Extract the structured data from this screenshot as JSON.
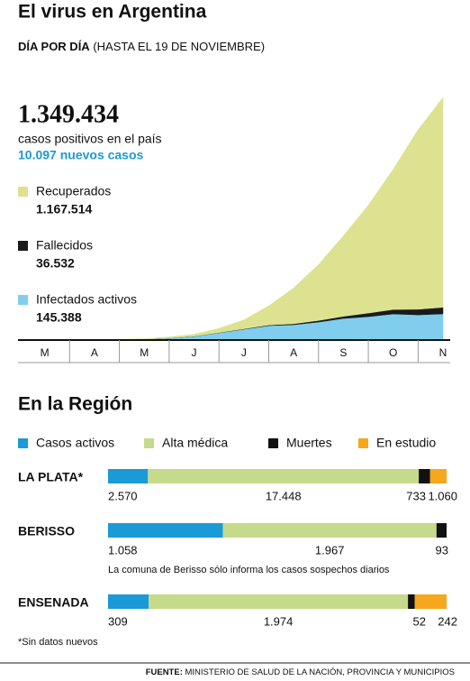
{
  "header": {
    "title": "El virus en Argentina",
    "subtitle_bold": "DÍA POR DÍA",
    "subtitle": "(HASTA EL 19 DE NOVIEMBRE)"
  },
  "chart_data": [
    {
      "type": "area",
      "stacked": true,
      "total": "1.349.434",
      "total_text": "casos positivos en el país",
      "new_cases": "10.097 nuevos casos",
      "categories": [
        null,
        "M",
        null,
        "A",
        null,
        "M",
        null,
        "J",
        null,
        "J",
        null,
        "A",
        null,
        "S",
        null,
        "O",
        null,
        "N"
      ],
      "series": [
        {
          "name": "Recuperados",
          "total": "1.167.514",
          "color": "#dde290",
          "values": [
            0,
            3,
            170,
            700,
            1300,
            2780,
            6470,
            11170,
            23700,
            49900,
            106400,
            199400,
            311300,
            448000,
            600000,
            780000,
            999000,
            1167514
          ]
        },
        {
          "name": "Fallecidos",
          "total": "36.532",
          "color": "#1a1a1a",
          "values": [
            0,
            2,
            30,
            100,
            200,
            320,
            530,
            830,
            1300,
            2100,
            3600,
            5600,
            8700,
            12000,
            20000,
            25000,
            31000,
            36532
          ]
        },
        {
          "name": "Infectados activos",
          "total": "145.388",
          "color": "#80cdee",
          "values": [
            0,
            45,
            800,
            1500,
            2800,
            4000,
            10000,
            20000,
            40000,
            60000,
            80000,
            85000,
            100000,
            120000,
            130000,
            145000,
            140000,
            145388
          ]
        }
      ],
      "ylim": [
        0,
        1400000
      ]
    },
    {
      "type": "bar",
      "orientation": "horizontal",
      "stacked": true,
      "normalized": true,
      "title": "En la Región",
      "categories": [
        "LA PLATA*",
        "BERISSO",
        "ENSENADA"
      ],
      "series": [
        {
          "name": "Casos activos",
          "color": "#1a9ad6",
          "values": [
            2570,
            1058,
            309
          ],
          "value_labels": [
            "2.570",
            "1.058",
            "309"
          ]
        },
        {
          "name": "Alta médica",
          "color": "#c6da8b",
          "values": [
            17448,
            1967,
            1974
          ],
          "value_labels": [
            "17.448",
            "1.967",
            "1.974"
          ]
        },
        {
          "name": "Muertes",
          "color": "#111111",
          "values": [
            733,
            93,
            52
          ],
          "value_labels": [
            "733",
            "93",
            "52"
          ]
        },
        {
          "name": "En estudio",
          "color": "#f5a81c",
          "values": [
            1060,
            null,
            242
          ],
          "value_labels": [
            "1.060",
            null,
            "242"
          ]
        }
      ],
      "note": "La comuna de Berisso sólo informa los casos sospechos diarios",
      "footnote": "*Sin datos nuevos"
    }
  ],
  "footer": {
    "label": "FUENTE:",
    "text": "MINISTERIO DE SALUD DE LA NACIÓN, PROVINCIA Y MUNICIPIOS"
  }
}
